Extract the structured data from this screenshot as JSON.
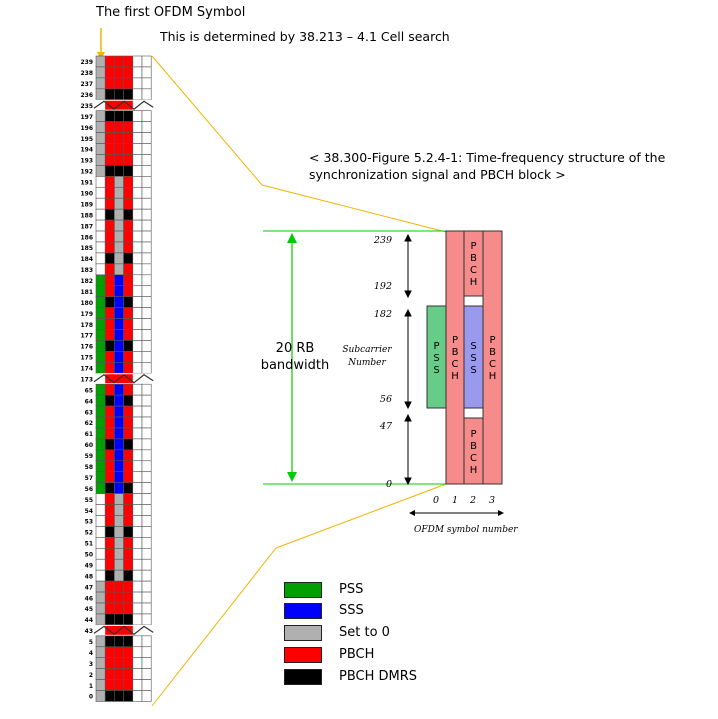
{
  "texts": {
    "title": "The first OFDM Symbol",
    "subtitle": "This is determined by 38.213 – 4.1 Cell search",
    "caption_line1": "< 38.300-Figure 5.2.4-1: Time-frequency structure of the",
    "caption_line2": "synchronization signal and PBCH block >",
    "rb_line1": "20 RB",
    "rb_line2": "bandwidth",
    "subcarrier_line1": "Subcarrier",
    "subcarrier_line2": "Number",
    "ofdm_axis": "OFDM symbol number"
  },
  "grid": {
    "row_labels": [
      "239",
      "238",
      "237",
      "236",
      "235",
      "197",
      "196",
      "195",
      "194",
      "193",
      "192",
      "191",
      "190",
      "189",
      "188",
      "187",
      "186",
      "185",
      "184",
      "183",
      "182",
      "181",
      "180",
      "179",
      "178",
      "177",
      "176",
      "175",
      "174",
      "173",
      "65",
      "64",
      "63",
      "62",
      "61",
      "60",
      "59",
      "58",
      "57",
      "56",
      "55",
      "54",
      "53",
      "52",
      "51",
      "50",
      "49",
      "48",
      "47",
      "46",
      "45",
      "44",
      "43",
      "5",
      "4",
      "3",
      "2",
      "1",
      "0"
    ],
    "break_rows": [
      4,
      29,
      52
    ],
    "rows": [
      "GRRRWW",
      "GRRRWW",
      "GRRRWW",
      "GBBBWW",
      "X",
      "GBBBWW",
      "GRRRWW",
      "GRRRWW",
      "GRRRWW",
      "GRRRWW",
      "GBBBWW",
      "WRGRWW",
      "WRGRWW",
      "WRGRWW",
      "WBGBWW",
      "WRGRWW",
      "WRGRWW",
      "WRGRWW",
      "WBGBWW",
      "WRGRWW",
      "PRSRWW",
      "PRSRWW",
      "PBSBWW",
      "PRSRWW",
      "PRSRWW",
      "PRSRWW",
      "PBSBWW",
      "PRSRWW",
      "PRSRWW",
      "X",
      "PRSRWW",
      "PBSBWW",
      "PRSRWW",
      "PRSRWW",
      "PRSRWW",
      "PBSBWW",
      "PRSRWW",
      "PRSRWW",
      "PRSRWW",
      "PBSBWW",
      "WRGRWW",
      "WRGRWW",
      "WRGRWW",
      "WBGBWW",
      "WRGRWW",
      "WRGRWW",
      "WRGRWW",
      "WBGBWW",
      "GRRRWW",
      "GRRRWW",
      "GRRRWW",
      "GBBBWW",
      "X",
      "GBBBWW",
      "GRRRWW",
      "GRRRWW",
      "GRRRWW",
      "GRRRWW",
      "GBBBWW"
    ]
  },
  "ssb": {
    "ticks": [
      "239",
      "192",
      "182",
      "56",
      "47",
      "0"
    ],
    "symbols": [
      "0",
      "1",
      "2",
      "3"
    ],
    "pbch_text": "PBCH",
    "pss_text": "PSS",
    "sss_text": "SSS"
  },
  "legend": [
    {
      "label": "PSS",
      "color": "#00a000"
    },
    {
      "label": "SSS",
      "color": "#0000ff"
    },
    {
      "label": "Set to 0",
      "color": "#b0b0b0"
    },
    {
      "label": "PBCH",
      "color": "#ff0000"
    },
    {
      "label": "PBCH DMRS",
      "color": "#000000"
    }
  ],
  "colors": {
    "pss": "#00a000",
    "sss": "#0000ff",
    "zero": "#b0b0b0",
    "pbch": "#ff0000",
    "dmrs": "#000000",
    "ssb_pss": "#66cc88",
    "ssb_sss": "#9999ee",
    "ssb_pbch": "#f58b8b",
    "bracket": "#00cc00",
    "connector": "#f0b400"
  }
}
